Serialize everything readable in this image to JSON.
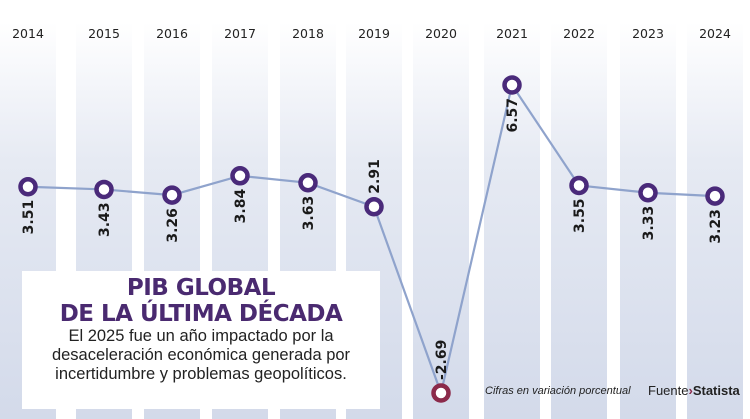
{
  "chart_data": {
    "type": "line",
    "title": "PIB GLOBAL DE LA ÚLTIMA DÉCADA",
    "subtitle": "El 2025 fue un año impactado por la desaceleración económica generada por incertidumbre y problemas geopolíticos.",
    "categories": [
      "2014",
      "2015",
      "2016",
      "2017",
      "2018",
      "2019",
      "2020",
      "2021",
      "2022",
      "2023",
      "2024"
    ],
    "values": [
      3.51,
      3.43,
      3.26,
      3.84,
      3.63,
      2.91,
      -2.69,
      6.57,
      3.55,
      3.33,
      3.23
    ],
    "value_labels": [
      "3.51",
      "3.43",
      "3.26",
      "3.84",
      "3.63",
      "2.91",
      "-2.69",
      "6.57",
      "3.55",
      "3.33",
      "3.23"
    ],
    "ylim": [
      -2.69,
      6.57
    ],
    "grid": false,
    "colors": {
      "line": "#8fa3cc",
      "marker": "#4a2a7a",
      "highlight": "#8b2a4a",
      "column": "#d3daea",
      "title": "#4a2a70"
    }
  },
  "header": {
    "title_line1": "PIB GLOBAL",
    "title_line2": "DE LA ÚLTIMA DÉCADA",
    "subtitle_line1": "El 2025 fue un año impactado por la",
    "subtitle_line2": "desaceleración económica generada por",
    "subtitle_line3": "incertidumbre y problemas geopolíticos."
  },
  "footer": {
    "note": "Cifras en variación porcentual",
    "source_label": "Fuente",
    "source_name": "Statista"
  }
}
